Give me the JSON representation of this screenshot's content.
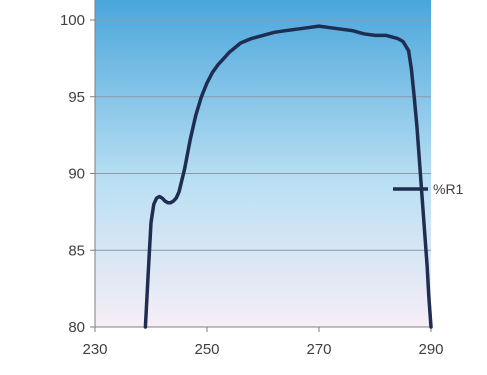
{
  "chart_data": {
    "type": "line",
    "xlim": [
      230,
      290
    ],
    "ylim": [
      80,
      100
    ],
    "x_ticks": [
      230,
      250,
      270,
      290
    ],
    "y_ticks": [
      80,
      85,
      90,
      95,
      100
    ],
    "grid": "horizontal",
    "legend": "right",
    "background": "gradient-blue-to-pink",
    "colors": {
      "series": "#1f2d50",
      "plot_top": "#4aa6dc",
      "plot_mid": "#b9dff3",
      "plot_bottom": "#f6eef6",
      "grid": "#8c9aa8",
      "axis": "#7f7f7f"
    },
    "series": [
      {
        "name": "%R1",
        "x": [
          239,
          239.5,
          240,
          240.5,
          241,
          241.5,
          242,
          242.5,
          243,
          243.5,
          244,
          244.5,
          245,
          246,
          247,
          248,
          249,
          250,
          251,
          252,
          253,
          254,
          255,
          256,
          258,
          260,
          262,
          264,
          266,
          268,
          270,
          272,
          274,
          276,
          278,
          280,
          282,
          284,
          285,
          286,
          286.5,
          287,
          287.5,
          288,
          288.5,
          289,
          289.3,
          289.6,
          290
        ],
        "y": [
          80,
          83.5,
          86.8,
          88.0,
          88.4,
          88.5,
          88.4,
          88.2,
          88.1,
          88.1,
          88.2,
          88.4,
          88.8,
          90.3,
          92.2,
          93.8,
          95.0,
          95.9,
          96.6,
          97.1,
          97.5,
          97.9,
          98.2,
          98.5,
          98.8,
          99.0,
          99.2,
          99.3,
          99.4,
          99.5,
          99.6,
          99.5,
          99.4,
          99.3,
          99.1,
          99.0,
          99.0,
          98.8,
          98.6,
          98.0,
          96.8,
          95.0,
          93.0,
          90.5,
          88.0,
          85.5,
          84.0,
          82.0,
          80
        ]
      }
    ]
  }
}
